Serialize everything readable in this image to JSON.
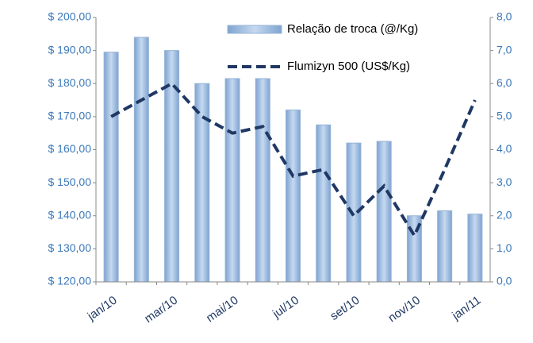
{
  "chart_data": {
    "type": "bar_line",
    "categories": [
      "jan/10",
      null,
      "mar/10",
      null,
      "mai/10",
      null,
      "jul/10",
      null,
      "set/10",
      null,
      "nov/10",
      null,
      "jan/11"
    ],
    "series": [
      {
        "name": "Relação de troca (@/Kg)",
        "type": "bar",
        "color": "#95b3d7",
        "axis": "y",
        "values": [
          189.5,
          194,
          190,
          180,
          181.5,
          181.5,
          172,
          167.5,
          162,
          162.5,
          140,
          141.5,
          140.5
        ]
      },
      {
        "name": "Flumizyn 500 (US$/Kg)",
        "type": "line",
        "color": "#1f3864",
        "axis": "y2",
        "values": [
          5.0,
          5.5,
          6.0,
          5.0,
          4.5,
          4.7,
          3.2,
          3.4,
          2.0,
          2.9,
          1.4,
          3.4,
          5.5
        ]
      }
    ],
    "ylim": [
      120,
      200
    ],
    "yticks": [
      {
        "value": 120,
        "label": "$ 120,00"
      },
      {
        "value": 130,
        "label": "$ 130,00"
      },
      {
        "value": 140,
        "label": "$ 140,00"
      },
      {
        "value": 150,
        "label": "$ 150,00"
      },
      {
        "value": 160,
        "label": "$ 160,00"
      },
      {
        "value": 170,
        "label": "$ 170,00"
      },
      {
        "value": 180,
        "label": "$ 180,00"
      },
      {
        "value": 190,
        "label": "$ 190,00"
      },
      {
        "value": 200,
        "label": "$ 200,00"
      }
    ],
    "y2lim": [
      0,
      8
    ],
    "y2ticks": [
      {
        "value": 0,
        "label": "0,0"
      },
      {
        "value": 1,
        "label": "1,0"
      },
      {
        "value": 2,
        "label": "2,0"
      },
      {
        "value": 3,
        "label": "3,0"
      },
      {
        "value": 4,
        "label": "4,0"
      },
      {
        "value": 5,
        "label": "5,0"
      },
      {
        "value": 6,
        "label": "6,0"
      },
      {
        "value": 7,
        "label": "7,0"
      },
      {
        "value": 8,
        "label": "8,0"
      }
    ],
    "legend": "upper right"
  }
}
